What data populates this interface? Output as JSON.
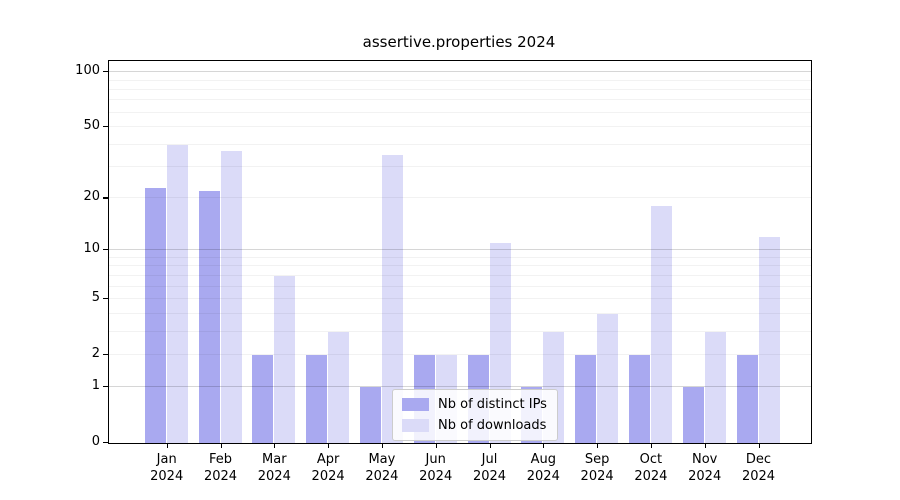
{
  "title": "assertive.properties 2024",
  "colors": {
    "distinct_ips": "#a9a9f0",
    "downloads": "#dbdbf8",
    "spine": "#000000",
    "grid_minor": "#ececec",
    "grid_major": "#d6d6d6"
  },
  "legend": {
    "items": [
      {
        "label": "Nb of distinct IPs",
        "color": "#a9a9f0"
      },
      {
        "label": "Nb of downloads",
        "color": "#dbdbf8"
      }
    ]
  },
  "chart_data": {
    "type": "bar",
    "title": "assertive.properties 2024",
    "categories": [
      "Jan 2024",
      "Feb 2024",
      "Mar 2024",
      "Apr 2024",
      "May 2024",
      "Jun 2024",
      "Jul 2024",
      "Aug 2024",
      "Sep 2024",
      "Oct 2024",
      "Nov 2024",
      "Dec 2024"
    ],
    "series": [
      {
        "name": "Nb of distinct IPs",
        "color": "#a9a9f0",
        "values": [
          23,
          22,
          2,
          2,
          1,
          2,
          2,
          1,
          2,
          2,
          1,
          2
        ]
      },
      {
        "name": "Nb of downloads",
        "color": "#dbdbf8",
        "values": [
          40,
          37,
          7,
          3,
          35,
          2,
          11,
          3,
          4,
          18,
          3,
          12
        ]
      }
    ],
    "xlabel": "",
    "ylabel": "",
    "yscale": "log1p",
    "ylim": [
      0,
      115
    ],
    "y_tick_values": [
      0,
      1,
      2,
      5,
      10,
      20,
      50,
      100
    ],
    "y_minor_grid": [
      2,
      3,
      4,
      5,
      6,
      7,
      8,
      9,
      20,
      30,
      40,
      50,
      60,
      70,
      80,
      90
    ],
    "y_major_grid": [
      1,
      10,
      100
    ],
    "grid": "on",
    "legend_position": "lower center"
  }
}
